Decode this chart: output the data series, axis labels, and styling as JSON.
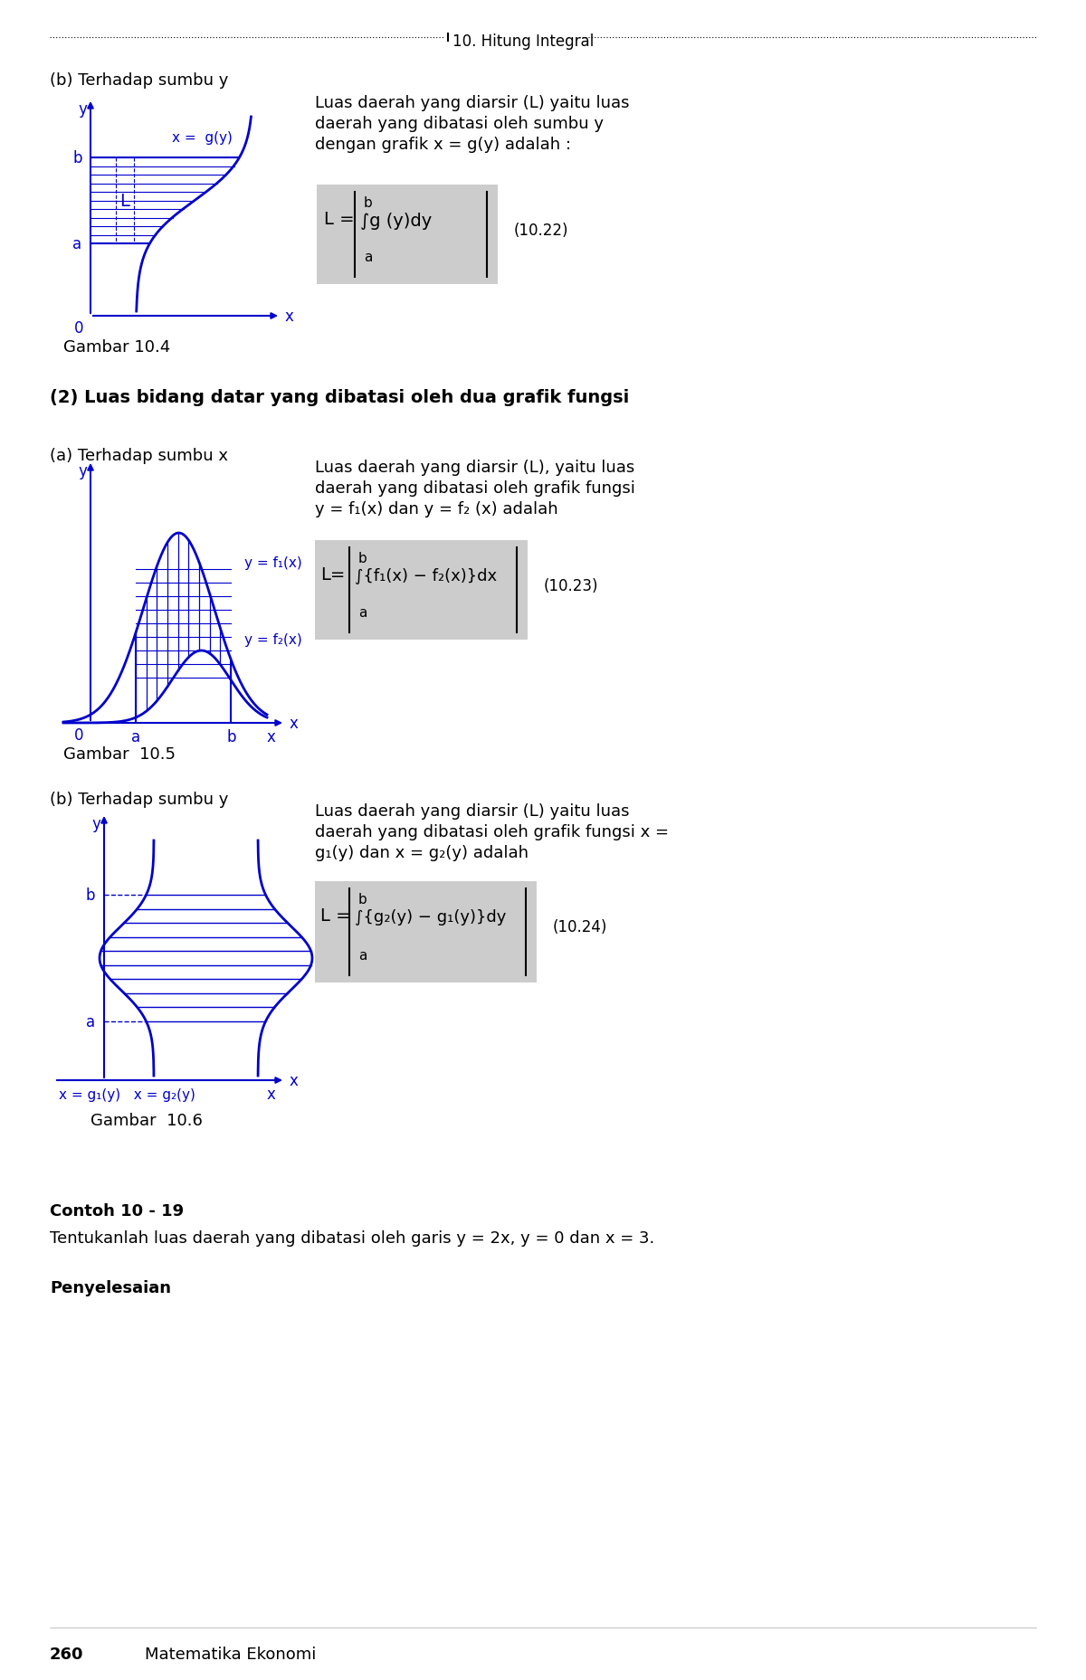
{
  "page_title": "10. Hitung Integral",
  "bg_color": "#ffffff",
  "blue_color": "#0000CC",
  "section1_label": "(b) Terhadap sumbu y",
  "section1_text1": "Luas daerah yang diarsir (L) yaitu luas",
  "section1_text2": "daerah yang dibatasi oleh sumbu y",
  "section1_text3": "dengan grafik x = g(y) adalah :",
  "formula1_number": "(10.22)",
  "gambar1": "Gambar 10.4",
  "section2_title": "(2) Luas bidang datar yang dibatasi oleh dua grafik fungsi",
  "section2a_label": "(a) Terhadap sumbu x",
  "section2a_text1": "Luas daerah yang diarsir (L), yaitu luas",
  "section2a_text2": "daerah yang dibatasi oleh grafik fungsi",
  "section2a_text3": "y = f₁(x) dan y = f₂ (x) adalah",
  "formula2_number": "(10.23)",
  "gambar2": "Gambar  10.5",
  "section2b_label": "(b) Terhadap sumbu y",
  "section2b_text1": "Luas daerah yang diarsir (L) yaitu luas",
  "section2b_text2": "daerah yang dibatasi oleh grafik fungsi x =",
  "section2b_text3": "g₁(y) dan x = g₂(y) adalah",
  "formula3_number": "(10.24)",
  "gambar3": "Gambar  10.6",
  "contoh_title": "Contoh 10 - 19",
  "contoh_text": "Tentukanlah luas daerah yang dibatasi oleh garis y = 2x, y = 0 dan x = 3.",
  "penyelesaian_title": "Penyelesaian",
  "footer_page": "260",
  "footer_text": "Matematika Ekonomi"
}
